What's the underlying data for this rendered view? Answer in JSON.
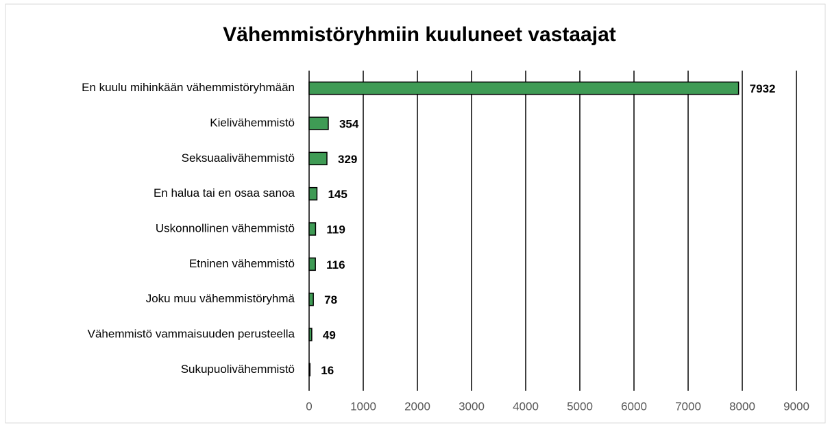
{
  "chart_data": {
    "type": "bar",
    "orientation": "horizontal",
    "title": "Vähemmistöryhmiin kuuluneet vastaajat",
    "categories": [
      "En kuulu mihinkään vähemmistöryhmään",
      "Kielivähemmistö",
      "Seksuaalivähemmistö",
      "En halua tai en osaa sanoa",
      "Uskonnollinen vähemmistö",
      "Etninen vähemmistö",
      "Joku muu vähemmistöryhmä",
      "Vähemmistö vammaisuuden perusteella",
      "Sukupuolivähemmistö"
    ],
    "values": [
      7932,
      354,
      329,
      145,
      119,
      116,
      78,
      49,
      16
    ],
    "color": "#3f9b55",
    "xlim": [
      0,
      9000
    ],
    "xticks": [
      0,
      1000,
      2000,
      3000,
      4000,
      5000,
      6000,
      7000,
      8000,
      9000
    ],
    "grid": true
  }
}
